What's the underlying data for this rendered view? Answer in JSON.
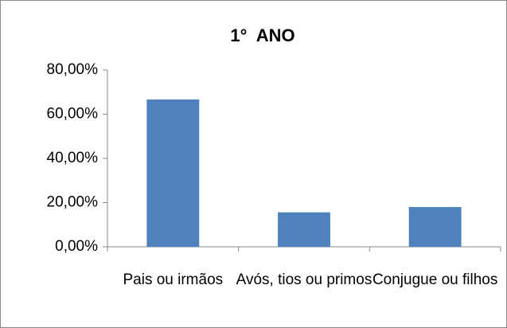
{
  "chart_data": {
    "type": "bar",
    "title": "1°  ANO",
    "categories": [
      "Pais ou irmãos",
      "Avós, tios ou primos",
      "Conjugue ou filhos"
    ],
    "values": [
      66.7,
      15.6,
      18.0
    ],
    "color": "#4f81bd",
    "ylim": [
      0,
      80
    ],
    "yticks": [
      {
        "value": 0,
        "label": "0,00%"
      },
      {
        "value": 20,
        "label": "20,00%"
      },
      {
        "value": 40,
        "label": "40,00%"
      },
      {
        "value": 60,
        "label": "60,00%"
      },
      {
        "value": 80,
        "label": "80,00%"
      }
    ],
    "grid": false
  }
}
